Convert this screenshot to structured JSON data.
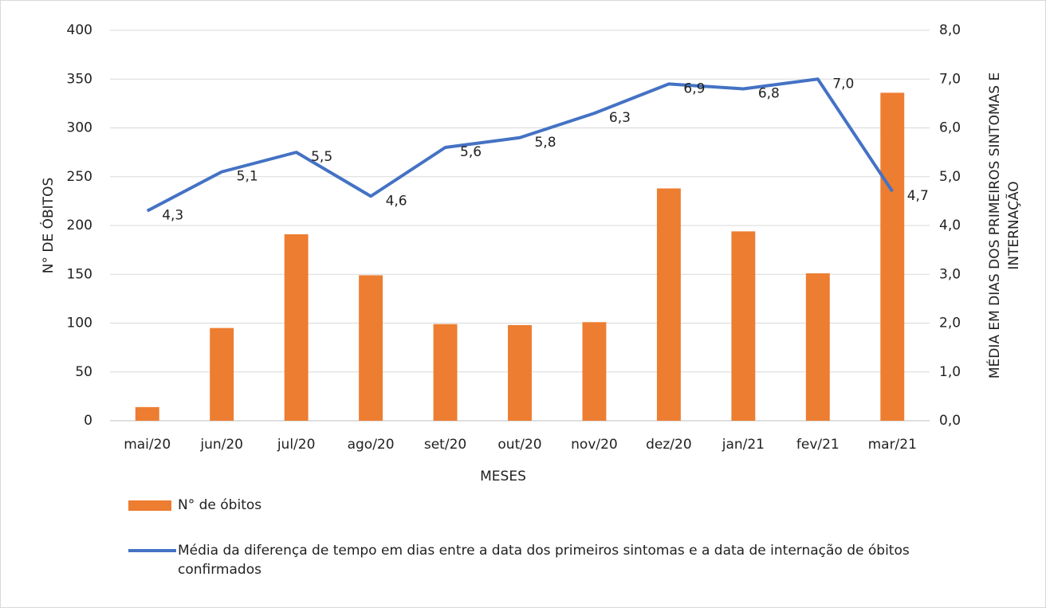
{
  "chart_data": {
    "type": "bar_line",
    "categories": [
      "mai/20",
      "jun/20",
      "jul/20",
      "ago/20",
      "set/20",
      "out/20",
      "nov/20",
      "dez/20",
      "jan/21",
      "fev/21",
      "mar/21"
    ],
    "series": [
      {
        "name": "N° de óbitos",
        "type": "bar",
        "color": "#ed7d31",
        "values": [
          14,
          95,
          191,
          149,
          99,
          98,
          101,
          238,
          194,
          151,
          336
        ]
      },
      {
        "name": "Média da diferença de tempo em dias entre a data dos primeiros sintomas e a data de internação de óbitos confirmados",
        "type": "line",
        "axis": "y2",
        "color": "#4472c4",
        "values": [
          4.3,
          5.1,
          5.5,
          4.6,
          5.6,
          5.8,
          6.3,
          6.9,
          6.8,
          7.0,
          4.7
        ],
        "value_labels": [
          "4,3",
          "5,1",
          "5,5",
          "4,6",
          "5,6",
          "5,8",
          "6,3",
          "6,9",
          "6,8",
          "7,0",
          "4,7"
        ]
      }
    ],
    "x_label": "MESES",
    "y_label": "N° DE ÓBITOS",
    "y2_label": [
      "MÉDIA EM DIAS DOS PRIMEIROS SINTOMAS E",
      "INTERNAÇÃO"
    ],
    "ylim": [
      0,
      400
    ],
    "yticks": [
      0,
      50,
      100,
      150,
      200,
      250,
      300,
      350,
      400
    ],
    "y2lim": [
      0,
      8
    ],
    "y2ticks": [
      {
        "value": 0,
        "label": "0,0"
      },
      {
        "value": 1,
        "label": "1,0"
      },
      {
        "value": 2,
        "label": "2,0"
      },
      {
        "value": 3,
        "label": "3,0"
      },
      {
        "value": 4,
        "label": "4,0"
      },
      {
        "value": 5,
        "label": "5,0"
      },
      {
        "value": 6,
        "label": "6,0"
      },
      {
        "value": 7,
        "label": "7,0"
      },
      {
        "value": 8,
        "label": "8,0"
      }
    ],
    "grid": true,
    "legend": "bottom"
  }
}
